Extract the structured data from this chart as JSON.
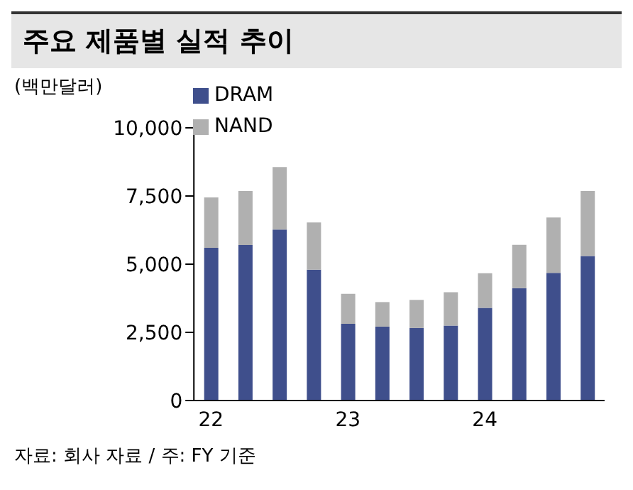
{
  "chart_data": {
    "type": "bar",
    "title": "주요 제품별 실적 추이",
    "ylabel": "(백만달러)",
    "annotations": [
      "자료: 회사 자료 / 주: FY 기준"
    ],
    "categories": [
      "22",
      null,
      null,
      null,
      "23",
      null,
      null,
      null,
      "24",
      null,
      null,
      null
    ],
    "stacked": true,
    "series": [
      {
        "name": "DRAM",
        "color": "#3f4f8c",
        "values": [
          5600,
          5700,
          6270,
          4800,
          2810,
          2710,
          2660,
          2750,
          3400,
          4120,
          4680,
          5300
        ]
      },
      {
        "name": "NAND",
        "color": "#b0b0b0",
        "values": [
          1850,
          1980,
          2290,
          1730,
          1100,
          900,
          1030,
          1220,
          1270,
          1590,
          2030,
          2380
        ]
      }
    ],
    "ylim": [
      0,
      10000
    ],
    "yticks": [
      0,
      {
        "value": 2500,
        "label": "2,500"
      },
      {
        "value": 5000,
        "label": "5,000"
      },
      {
        "value": 7500,
        "label": "7,500"
      },
      {
        "value": 10000,
        "label": "10,000"
      }
    ],
    "grid": false,
    "legend": "top left"
  }
}
